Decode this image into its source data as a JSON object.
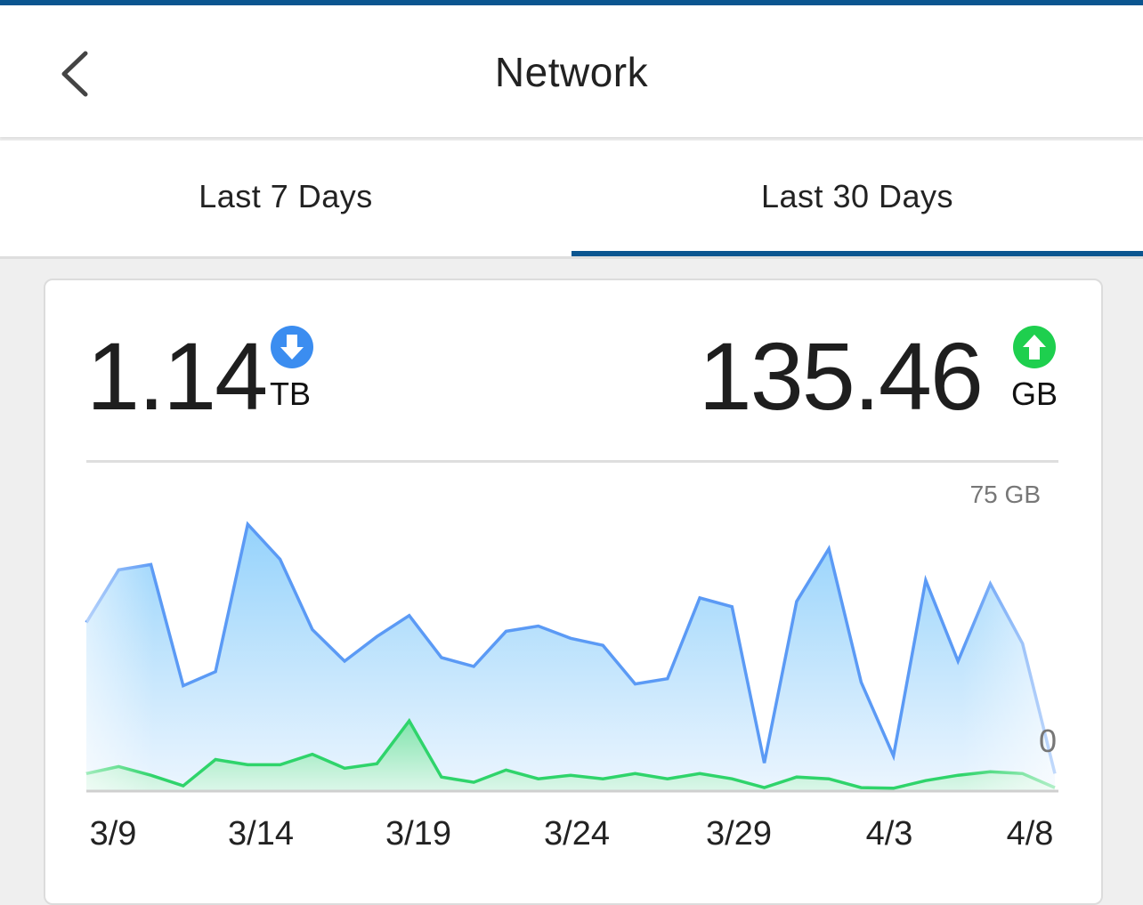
{
  "header": {
    "title": "Network"
  },
  "tabs": [
    {
      "label": "Last 7 Days",
      "active": false
    },
    {
      "label": "Last 30 Days",
      "active": true
    }
  ],
  "summary": {
    "download": {
      "value": "1.14",
      "unit": "TB",
      "icon": "download-arrow-icon",
      "color": "#3b8df0"
    },
    "upload": {
      "value": "135.46",
      "unit": "GB",
      "icon": "upload-arrow-icon",
      "color": "#1ecf4e"
    }
  },
  "chart_data": {
    "type": "area",
    "ylabel_top": "75 GB",
    "ylabel_bottom": "0",
    "ylim": [
      0,
      75
    ],
    "x_tick_labels": [
      "3/9",
      "3/14",
      "3/19",
      "3/24",
      "3/29",
      "4/3",
      "4/8"
    ],
    "series": [
      {
        "color": "#5b9af5",
        "values": [
          48,
          63,
          64.5,
          30,
          34,
          76,
          66,
          46,
          37,
          44,
          50,
          38,
          35.5,
          45.5,
          47,
          43.5,
          41.5,
          30.5,
          32,
          55,
          52.5,
          8,
          54,
          69,
          31,
          10,
          60,
          37,
          59,
          42,
          5
        ]
      },
      {
        "color": "#2fd46b",
        "values": [
          5,
          7,
          4.5,
          1.5,
          9,
          7.5,
          7.5,
          10.5,
          6.5,
          7.8,
          20,
          4,
          2.5,
          6,
          3.5,
          4.5,
          3.5,
          5,
          3.5,
          5,
          3.5,
          1,
          4,
          3.5,
          1,
          0.8,
          3,
          4.5,
          5.5,
          5,
          1
        ]
      }
    ]
  }
}
